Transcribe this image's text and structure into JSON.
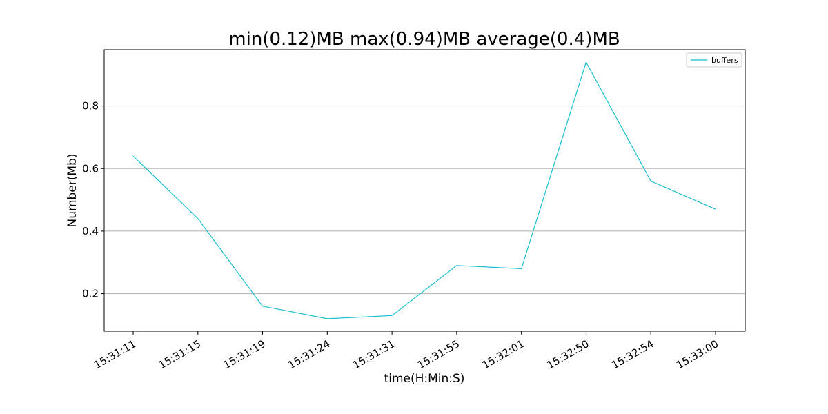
{
  "chart_data": {
    "type": "line",
    "title": "min(0.12)MB max(0.94)MB average(0.4)MB",
    "xlabel": "time(H:Min:S)",
    "ylabel": "Number(Mb)",
    "categories": [
      "15:31:11",
      "15:31:15",
      "15:31:19",
      "15:31:24",
      "15:31:31",
      "15:31:55",
      "15:32:01",
      "15:32:50",
      "15:32:54",
      "15:33:00"
    ],
    "series": [
      {
        "name": "buffers",
        "color": "#17becf",
        "values": [
          0.64,
          0.44,
          0.16,
          0.12,
          0.13,
          0.29,
          0.28,
          0.94,
          0.56,
          0.47
        ]
      }
    ],
    "yticks": [
      "0.2",
      "0.4",
      "0.6",
      "0.8"
    ],
    "ylim": [
      0.08,
      0.98
    ],
    "grid": "horizontal",
    "legend_position": "top-right"
  }
}
